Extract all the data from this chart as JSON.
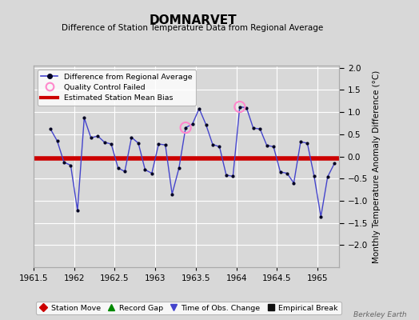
{
  "title": "DOMNARVET",
  "subtitle": "Difference of Station Temperature Data from Regional Average",
  "ylabel": "Monthly Temperature Anomaly Difference (°C)",
  "xlim": [
    1961.5,
    1965.27
  ],
  "ylim": [
    -2.5,
    2.05
  ],
  "yticks": [
    -2.0,
    -1.5,
    -1.0,
    -0.5,
    0.0,
    0.5,
    1.0,
    1.5,
    2.0
  ],
  "xticks": [
    1961.5,
    1962.0,
    1962.5,
    1963.0,
    1963.5,
    1964.0,
    1964.5,
    1965.0
  ],
  "xtick_labels": [
    "1961.5",
    "1962",
    "1962.5",
    "1963",
    "1963.5",
    "1964",
    "1964.5",
    "1965"
  ],
  "background_color": "#d8d8d8",
  "plot_bg_color": "#d8d8d8",
  "grid_color": "#ffffff",
  "line_color": "#4444cc",
  "dot_color": "#000022",
  "bias_line_color": "#cc0000",
  "bias_value": -0.04,
  "qc_failed_color": "#ff88cc",
  "watermark": "Berkeley Earth",
  "x_data": [
    1961.708,
    1961.792,
    1961.875,
    1961.958,
    1962.042,
    1962.125,
    1962.208,
    1962.292,
    1962.375,
    1962.458,
    1962.542,
    1962.625,
    1962.708,
    1962.792,
    1962.875,
    1962.958,
    1963.042,
    1963.125,
    1963.208,
    1963.292,
    1963.375,
    1963.458,
    1963.542,
    1963.625,
    1963.708,
    1963.792,
    1963.875,
    1963.958,
    1964.042,
    1964.125,
    1964.208,
    1964.292,
    1964.375,
    1964.458,
    1964.542,
    1964.625,
    1964.708,
    1964.792,
    1964.875,
    1964.958,
    1965.042,
    1965.125,
    1965.208
  ],
  "y_data": [
    0.62,
    0.35,
    -0.13,
    -0.2,
    -1.22,
    0.87,
    0.42,
    0.46,
    0.32,
    0.28,
    -0.26,
    -0.34,
    0.43,
    0.3,
    -0.3,
    -0.38,
    0.28,
    0.26,
    -0.85,
    -0.27,
    0.65,
    0.73,
    1.08,
    0.72,
    0.27,
    0.22,
    -0.42,
    -0.45,
    1.12,
    1.1,
    0.64,
    0.62,
    0.25,
    0.22,
    -0.35,
    -0.38,
    -0.6,
    0.33,
    0.3,
    -0.44,
    -1.36,
    -0.46,
    -0.16
  ],
  "qc_failed_indices": [
    20,
    28
  ],
  "top_legend": [
    {
      "label": "Difference from Regional Average",
      "color": "#4444cc",
      "type": "line_dot"
    },
    {
      "label": "Quality Control Failed",
      "color": "#ff88cc",
      "type": "circle_open"
    },
    {
      "label": "Estimated Station Mean Bias",
      "color": "#cc0000",
      "type": "line"
    }
  ],
  "bottom_legend": [
    {
      "label": "Station Move",
      "color": "#cc0000",
      "marker": "D"
    },
    {
      "label": "Record Gap",
      "color": "#008800",
      "marker": "^"
    },
    {
      "label": "Time of Obs. Change",
      "color": "#4444cc",
      "marker": "v"
    },
    {
      "label": "Empirical Break",
      "color": "#111111",
      "marker": "s"
    }
  ]
}
